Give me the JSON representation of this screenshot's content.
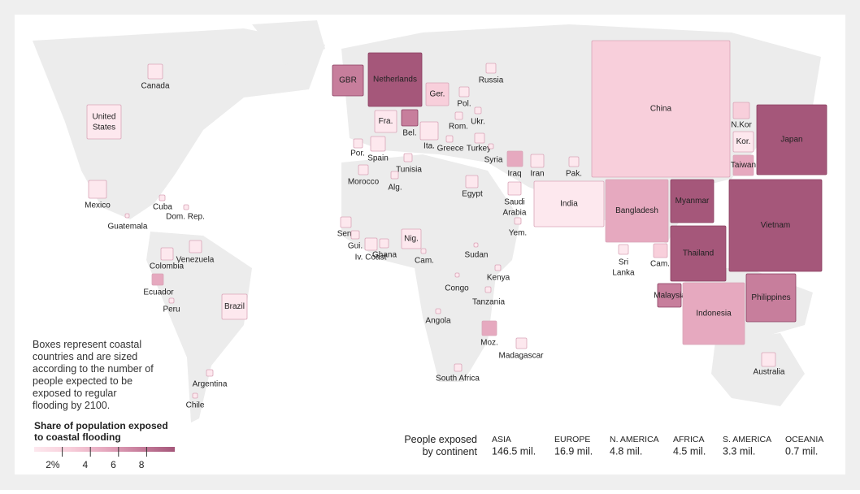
{
  "countries": [
    "Canada",
    "United States",
    "Mexico",
    "Cuba",
    "Dom. Rep.",
    "Guatemala",
    "Colombia",
    "Venezuela",
    "Ecuador",
    "Peru",
    "Brazil",
    "Argentina",
    "Chile",
    "GBR",
    "Netherlands",
    "Ger.",
    "Russia",
    "Pol.",
    "Ukr.",
    "Rom.",
    "Fra.",
    "Bel.",
    "Ita.",
    "Greece",
    "Turkey",
    "Por.",
    "Spain",
    "Syria",
    "Tunisia",
    "Iraq",
    "Iran",
    "Pak.",
    "Morocco",
    "Alg.",
    "Egypt",
    "Saudi Arabia",
    "Yem.",
    "Sen.",
    "Gui.",
    "Iv. Coast",
    "Ghana",
    "Nig.",
    "Cam.",
    "Sudan",
    "Kenya",
    "Congo",
    "Tanzania",
    "Angola",
    "Moz.",
    "Madagascar",
    "South Africa",
    "China",
    "India",
    "Bangladesh",
    "Myanmar",
    "Thailand",
    "Sri Lanka",
    "Cam.",
    "Malaysia",
    "Indonesia",
    "Philippines",
    "Vietnam",
    "N.Kor",
    "Kor.",
    "Taiwan",
    "Japan",
    "Australia"
  ],
  "note": "Boxes represent coastal countries and are sized according to the number of people expected to be exposed to regular flooding by 2100.",
  "legend": {
    "title": "Share of population exposed to coastal flooding",
    "xlim": [
      0,
      10
    ],
    "ticks": [
      {
        "value": 2,
        "label": "2%"
      },
      4,
      6,
      8
    ]
  },
  "summary": {
    "title": "People exposed by continent",
    "continents": [
      {
        "name": "ASIA",
        "value": 146.5,
        "label": "146.5 mil."
      },
      {
        "name": "EUROPE",
        "value": 16.9,
        "label": "16.9 mil."
      },
      {
        "name": "N. AMERICA",
        "value": 4.8,
        "label": "4.8 mil."
      },
      {
        "name": "AFRICA",
        "value": 4.5,
        "label": "4.5 mil."
      },
      {
        "name": "S. AMERICA",
        "value": 3.3,
        "label": "3.3 mil."
      },
      {
        "name": "OCEANIA",
        "value": 0.7,
        "label": "0.7 mil."
      }
    ]
  }
}
